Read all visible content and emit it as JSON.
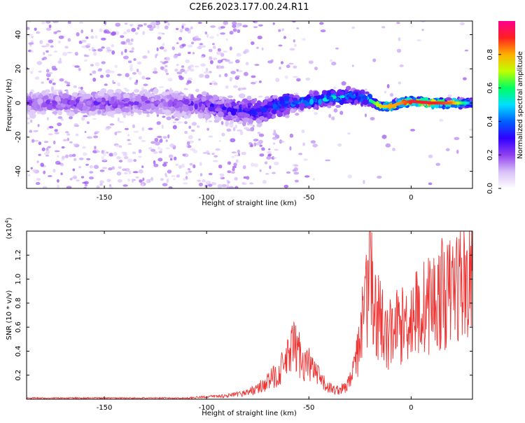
{
  "title": "C2E6.2023.177.00.24.R11",
  "chart_data": [
    {
      "type": "heatmap",
      "xlabel": "Height of straight line (km)",
      "ylabel": "Frequency (Hz)",
      "xlim": [
        -188,
        30
      ],
      "ylim": [
        -50,
        48
      ],
      "xticks": [
        -150,
        -100,
        -50,
        0
      ],
      "yticks": [
        -40,
        -20,
        0,
        20,
        40
      ],
      "grid": false,
      "colorbar": {
        "label": "Normalized spectral amplitude",
        "range": [
          0,
          1
        ],
        "ticks": [
          0.0,
          0.2,
          0.4,
          0.6,
          0.8
        ],
        "tick_labels": [
          "0.0",
          "0.2",
          "0.4",
          "0.6",
          "0.8"
        ],
        "colormap": [
          "#ffffff",
          "#d8c0f8",
          "#9040f0",
          "#3000ff",
          "#0060ff",
          "#00e0ff",
          "#00ff60",
          "#c0ff00",
          "#ffb000",
          "#ff2020",
          "#ff0090"
        ]
      },
      "ridge": {
        "x": [
          -188,
          -150,
          -120,
          -100,
          -90,
          -75,
          -60,
          -50,
          -40,
          -30,
          -22,
          -15,
          -10,
          -5,
          0,
          10,
          20,
          30
        ],
        "frequency": [
          0,
          0,
          0,
          -1,
          -4,
          -5,
          0,
          1,
          3,
          4,
          3,
          -2,
          -2,
          0,
          1,
          0,
          0,
          0
        ],
        "peak_amplitude": [
          0.2,
          0.25,
          0.2,
          0.28,
          0.3,
          0.38,
          0.45,
          0.48,
          0.55,
          0.5,
          0.45,
          0.75,
          0.8,
          0.82,
          0.9,
          0.92,
          0.85,
          0.4
        ]
      }
    },
    {
      "type": "line",
      "xlabel": "Height of straight line (km)",
      "ylabel": "SNR (10 * v/v)",
      "scale_label": "(x10",
      "scale_exponent": "4",
      "scale_label_close": ")",
      "xlim": [
        -188,
        30
      ],
      "ylim": [
        0,
        1.4
      ],
      "xticks": [
        -150,
        -100,
        -50,
        0
      ],
      "yticks": [
        0.2,
        0.4,
        0.6,
        0.8,
        1.0,
        1.2
      ],
      "ytick_labels": [
        "0.2",
        "0.4",
        "0.6",
        "0.8",
        "1.0",
        "1.2"
      ],
      "grid": false,
      "series": [
        {
          "color": "#ee3333",
          "x": [
            -188,
            -170,
            -150,
            -130,
            -110,
            -100,
            -90,
            -85,
            -80,
            -75,
            -70,
            -65,
            -60,
            -58,
            -55,
            -52,
            -50,
            -48,
            -45,
            -42,
            -40,
            -38,
            -35,
            -32,
            -30,
            -28,
            -26,
            -24,
            -22,
            -21,
            -20,
            -19,
            -18,
            -16,
            -14,
            -12,
            -10,
            -8,
            -6,
            -4,
            -2,
            0,
            2,
            4,
            6,
            8,
            10,
            12,
            15,
            18,
            20,
            22,
            25,
            28,
            30
          ],
          "y": [
            0.01,
            0.01,
            0.01,
            0.01,
            0.01,
            0.02,
            0.03,
            0.04,
            0.06,
            0.09,
            0.15,
            0.22,
            0.35,
            0.45,
            0.4,
            0.3,
            0.3,
            0.25,
            0.18,
            0.12,
            0.1,
            0.08,
            0.08,
            0.1,
            0.15,
            0.25,
            0.4,
            0.6,
            0.8,
            0.95,
            1.38,
            0.9,
            0.75,
            0.65,
            0.55,
            0.5,
            0.55,
            0.6,
            0.65,
            0.62,
            0.68,
            0.7,
            0.75,
            0.72,
            0.78,
            0.8,
            0.85,
            0.82,
            0.9,
            0.88,
            0.95,
            0.98,
            1.0,
            1.03,
            1.06
          ]
        }
      ]
    }
  ]
}
